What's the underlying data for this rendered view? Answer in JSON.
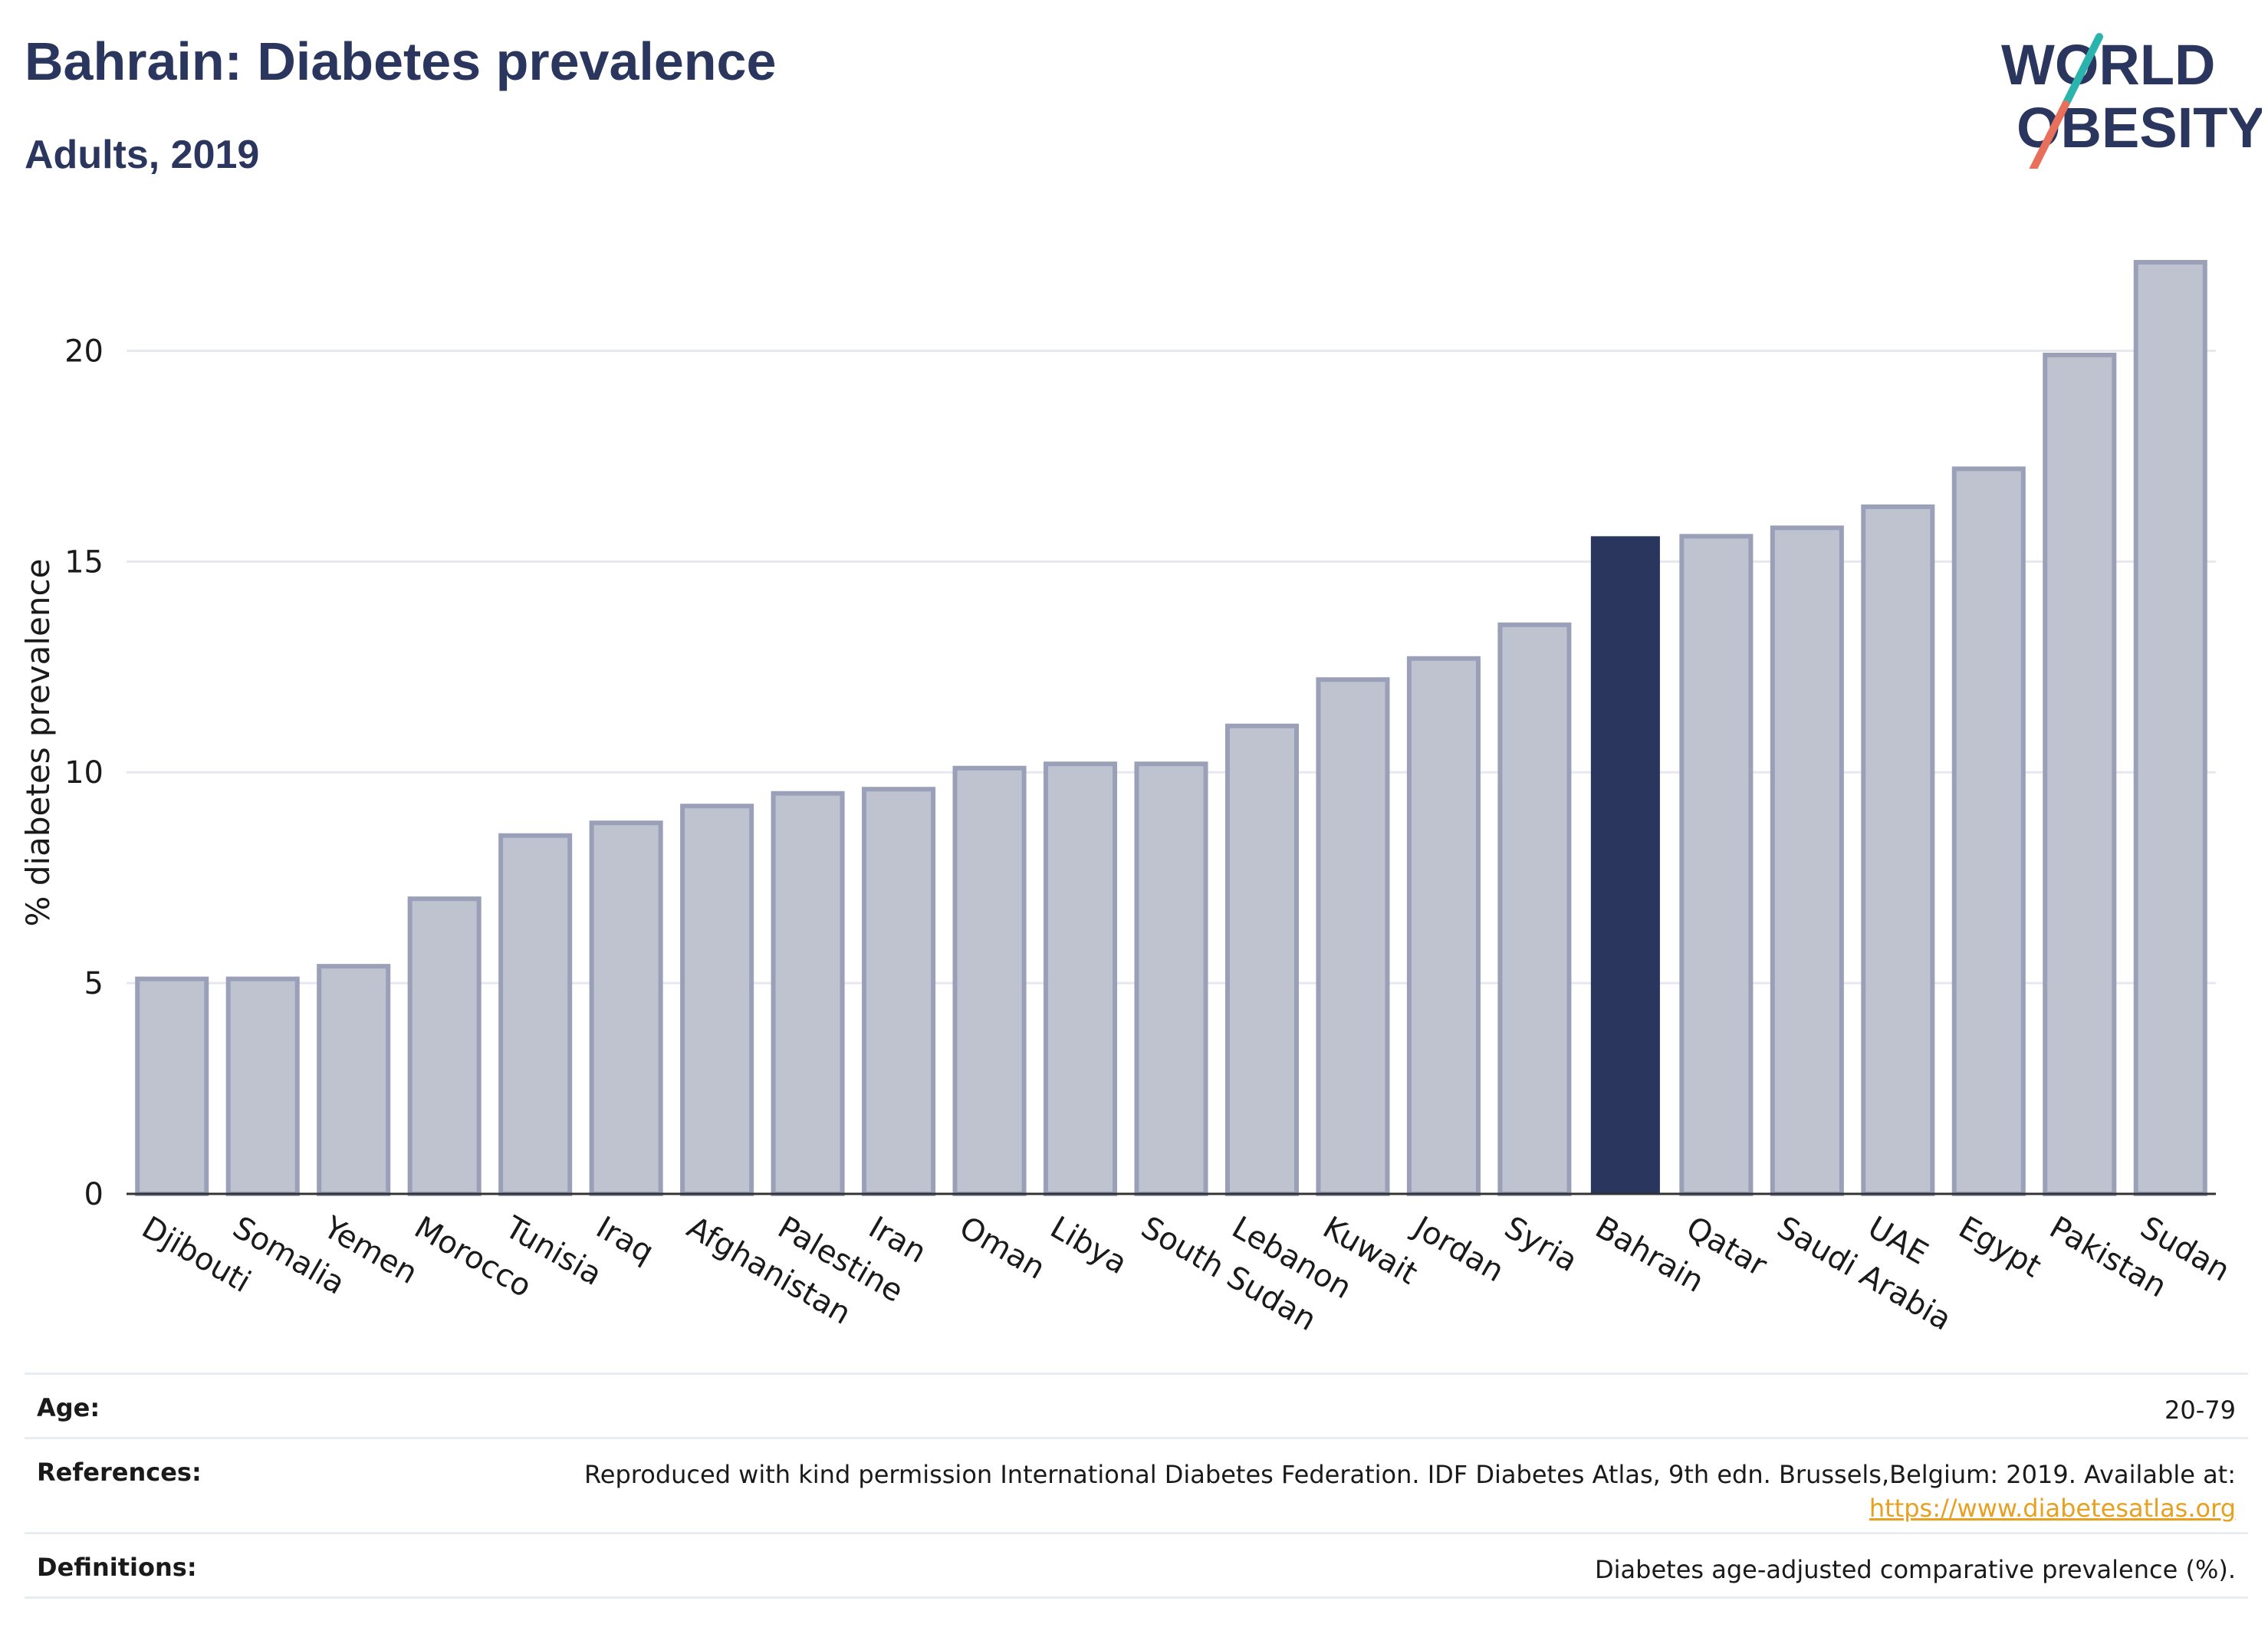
{
  "header": {
    "title": "Bahrain: Diabetes prevalence",
    "subtitle": "Adults, 2019"
  },
  "logo": {
    "line1": "WORLD",
    "line2": "OBESITY",
    "colors": {
      "text": "#2b365e",
      "slash_top": "#2bb3ad",
      "slash_bottom": "#e8705a"
    }
  },
  "colors": {
    "highlight_bar": "#2b365e",
    "other_bar_fill": "#bfc3d0",
    "other_bar_stroke": "#9aa0b8",
    "gridline": "#e6e8ef",
    "link": "#e8a020"
  },
  "chart_data": {
    "type": "bar",
    "title": "Bahrain: Diabetes prevalence",
    "subtitle": "Adults, 2019",
    "xlabel": "",
    "ylabel": "% diabetes prevalence",
    "ylim": [
      0,
      22.5
    ],
    "yticks": [
      0,
      5,
      10,
      15,
      20
    ],
    "grid": true,
    "highlight": "Bahrain",
    "categories": [
      "Djibouti",
      "Somalia",
      "Yemen",
      "Morocco",
      "Tunisia",
      "Iraq",
      "Afghanistan",
      "Palestine",
      "Iran",
      "Oman",
      "Libya",
      "South Sudan",
      "Lebanon",
      "Kuwait",
      "Jordan",
      "Syria",
      "Bahrain",
      "Qatar",
      "Saudi Arabia",
      "UAE",
      "Egypt",
      "Pakistan",
      "Sudan"
    ],
    "values": [
      5.1,
      5.1,
      5.4,
      7.0,
      8.5,
      8.8,
      9.2,
      9.5,
      9.6,
      10.1,
      10.2,
      10.2,
      11.1,
      12.2,
      12.7,
      13.5,
      15.6,
      15.6,
      15.8,
      16.3,
      17.2,
      19.9,
      22.1
    ]
  },
  "info": {
    "rows": [
      {
        "key": "Age:",
        "value": "20-79"
      },
      {
        "key": "References:",
        "value": "Reproduced with kind permission International Diabetes Federation. IDF Diabetes Atlas, 9th edn. Brussels,Belgium: 2019. Available at:",
        "link": "https://www.diabetesatlas.org"
      },
      {
        "key": "Definitions:",
        "value": "Diabetes age-adjusted comparative prevalence (%)."
      }
    ]
  }
}
